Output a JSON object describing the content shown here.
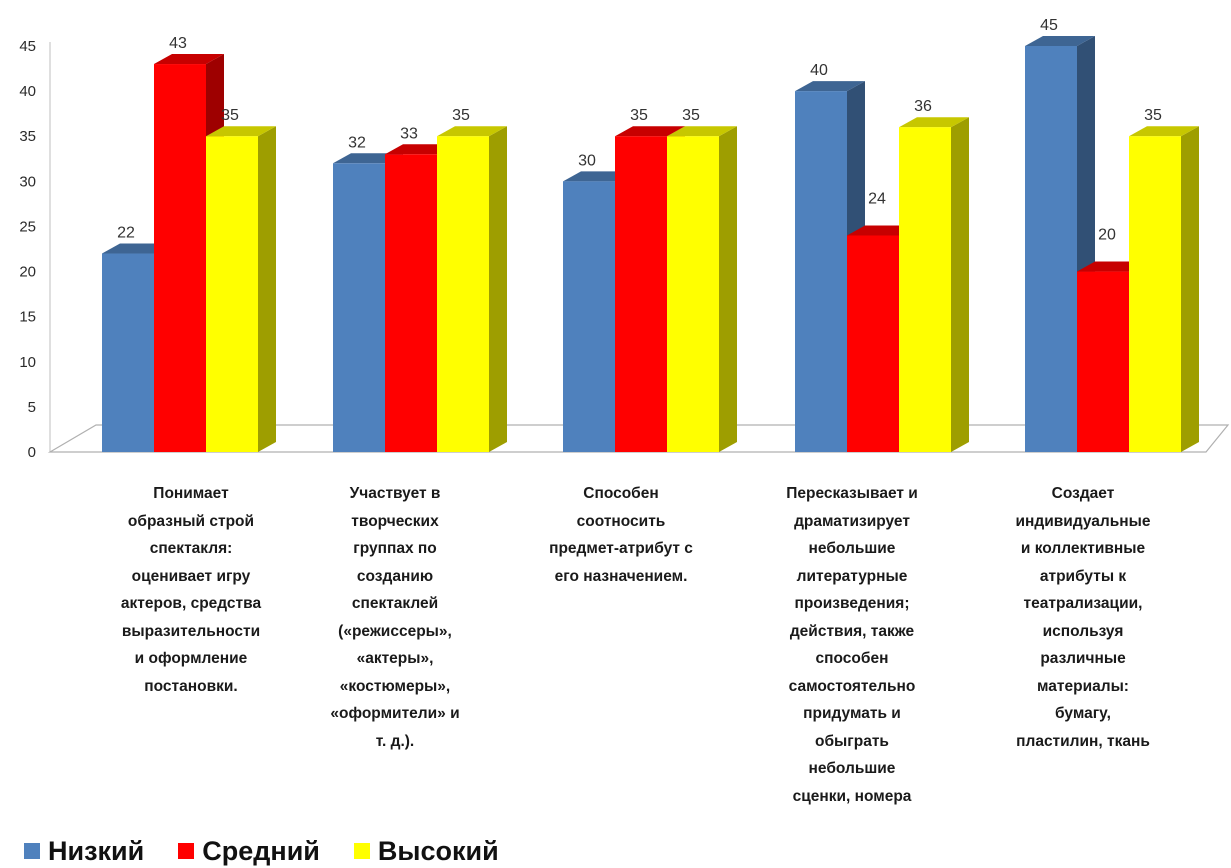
{
  "chart_data": {
    "type": "bar",
    "title": "",
    "xlabel": "",
    "ylabel": "",
    "ylim": [
      0,
      45
    ],
    "yticks": [
      0,
      5,
      10,
      15,
      20,
      25,
      30,
      35,
      40,
      45
    ],
    "grid": false,
    "three_d": true,
    "legend_position": "bottom-left",
    "categories": [
      "Понимает\nобразный строй\nспектакля:\nоценивает игру\nактеров, средства\nвыразительности\nи оформление\nпостановки.",
      "Участвует в\nтворческих\nгруппах по\nсозданию\nспектаклей\n(«режиссеры»,\n«актеры»,\n«костюмеры»,\n«оформители» и\nт. д.).",
      "Способен\nсоотносить\nпредмет-атрибут с\nего назначением.",
      "Пересказывает и\nдраматизирует\nнебольшие\nлитературные\nпроизведения;\nдействия, также\nспособен\nсамостоятельно\nпридумать и\nобыграть\nнебольшие\nсценки, номера",
      "Создает\nиндивидуальные\nи коллективные\nатрибуты к\nтеатрализации,\nиспользуя\nразличные\nматериалы:\nбумагу,\nпластилин, ткань"
    ],
    "series": [
      {
        "name": "Низкий",
        "color": "#4f81bd",
        "values": [
          22,
          32,
          30,
          40,
          45
        ]
      },
      {
        "name": "Средний",
        "color": "#ff0000",
        "values": [
          43,
          33,
          35,
          24,
          20
        ]
      },
      {
        "name": "Высокий",
        "color": "#ffff00",
        "values": [
          35,
          35,
          35,
          36,
          35
        ]
      }
    ]
  }
}
